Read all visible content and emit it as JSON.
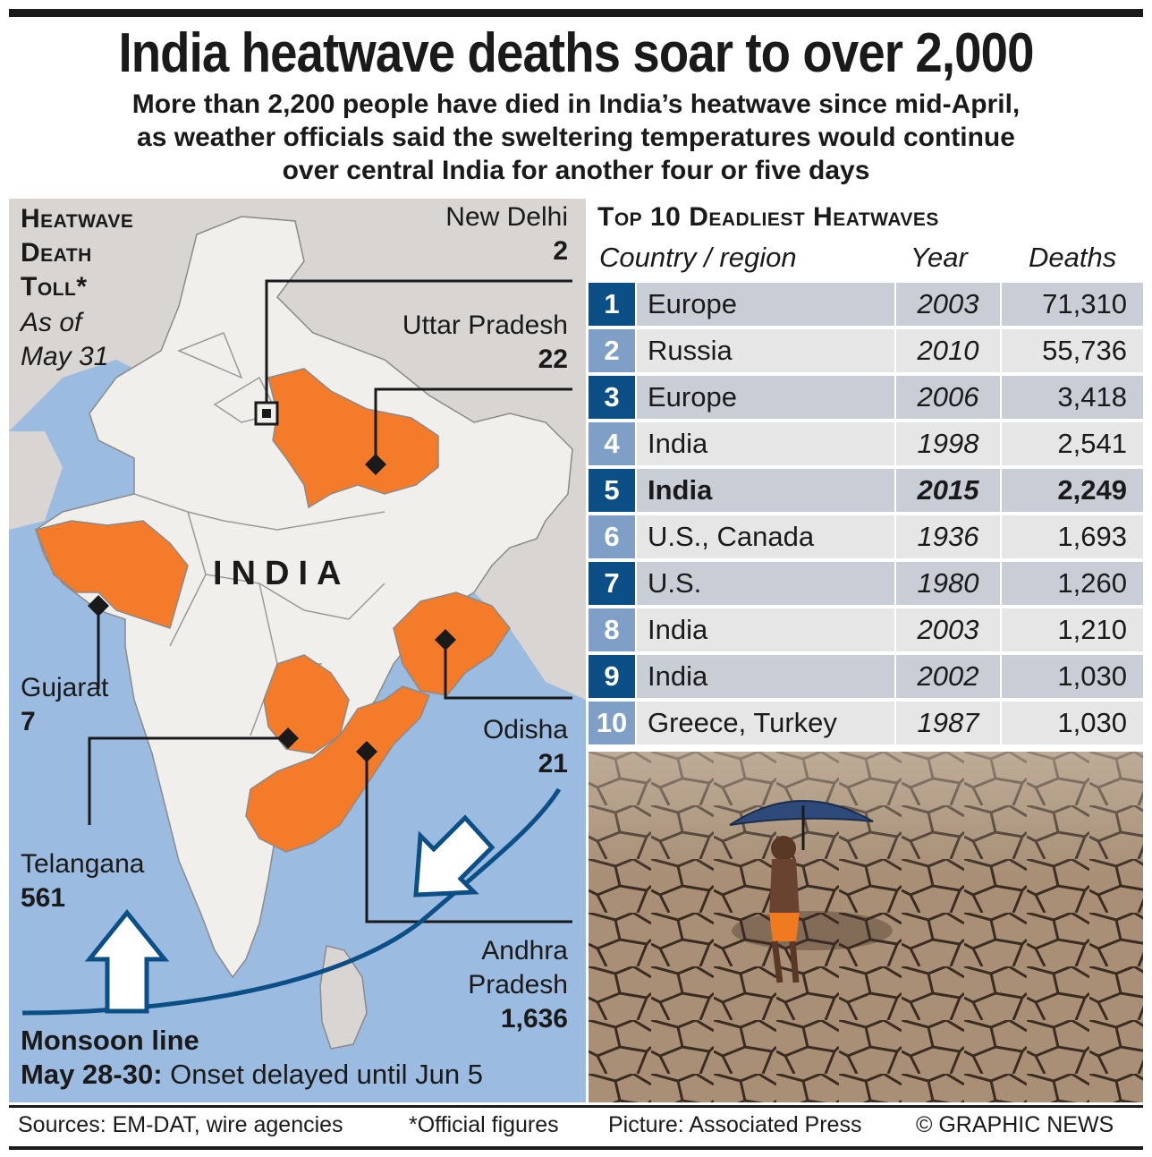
{
  "title": "India heatwave deaths soar to over 2,000",
  "subtitle": {
    "line1": "More than 2,200 people have died in India’s heatwave since mid-April,",
    "line2": "as weather officials said the sweltering temperatures would continue",
    "line3": "over central India for another four or five days"
  },
  "map": {
    "heading_line1": "Heatwave",
    "heading_line2": "Death",
    "heading_line3": "Toll*",
    "asof_line1": "As of",
    "asof_line2": "May 31",
    "country_label": "INDIA",
    "regions": [
      {
        "name": "New Delhi",
        "deaths": "2"
      },
      {
        "name": "Uttar Pradesh",
        "deaths": "22"
      },
      {
        "name": "Gujarat",
        "deaths": "7"
      },
      {
        "name": "Odisha",
        "deaths": "21"
      },
      {
        "name": "Telangana",
        "deaths": "561"
      },
      {
        "name": "Andhra",
        "name2": "Pradesh",
        "deaths": "1,636"
      }
    ],
    "monsoon_title": "Monsoon line",
    "monsoon_date": "May 28-30:",
    "monsoon_note": " Onset delayed until Jun 5",
    "colors": {
      "affected": "#f47b2a",
      "land": "#f1efec",
      "sea": "#9bbce0",
      "neighbours": "#d9d5d2",
      "monsoon_line": "#0b4f86"
    }
  },
  "table": {
    "title": "Top 10 Deadliest Heatwaves",
    "headers": {
      "country": "Country / region",
      "year": "Year",
      "deaths": "Deaths"
    },
    "rows": [
      {
        "rank": "1",
        "country": "Europe",
        "year": "2003",
        "deaths": "71,310"
      },
      {
        "rank": "2",
        "country": "Russia",
        "year": "2010",
        "deaths": "55,736"
      },
      {
        "rank": "3",
        "country": "Europe",
        "year": "2006",
        "deaths": "3,418"
      },
      {
        "rank": "4",
        "country": "India",
        "year": "1998",
        "deaths": "2,541"
      },
      {
        "rank": "5",
        "country": "India",
        "year": "2015",
        "deaths": "2,249"
      },
      {
        "rank": "6",
        "country": "U.S., Canada",
        "year": "1936",
        "deaths": "1,693"
      },
      {
        "rank": "7",
        "country": "U.S.",
        "year": "1980",
        "deaths": "1,260"
      },
      {
        "rank": "8",
        "country": "India",
        "year": "2003",
        "deaths": "1,210"
      },
      {
        "rank": "9",
        "country": "India",
        "year": "2002",
        "deaths": "1,030"
      },
      {
        "rank": "10",
        "country": "Greece, Turkey",
        "year": "1987",
        "deaths": "1,030"
      }
    ],
    "highlight_rank": "5",
    "colors": {
      "rank_dark": "#0b4f86",
      "rank_light": "#7f9fc7",
      "row_dark": "#c9cdd6",
      "row_light": "#e6e6e6"
    }
  },
  "footer": {
    "sources": "Sources: EM-DAT, wire agencies",
    "note": "*Official figures",
    "picture": "Picture: Associated Press",
    "credit": "© GRAPHIC NEWS"
  }
}
